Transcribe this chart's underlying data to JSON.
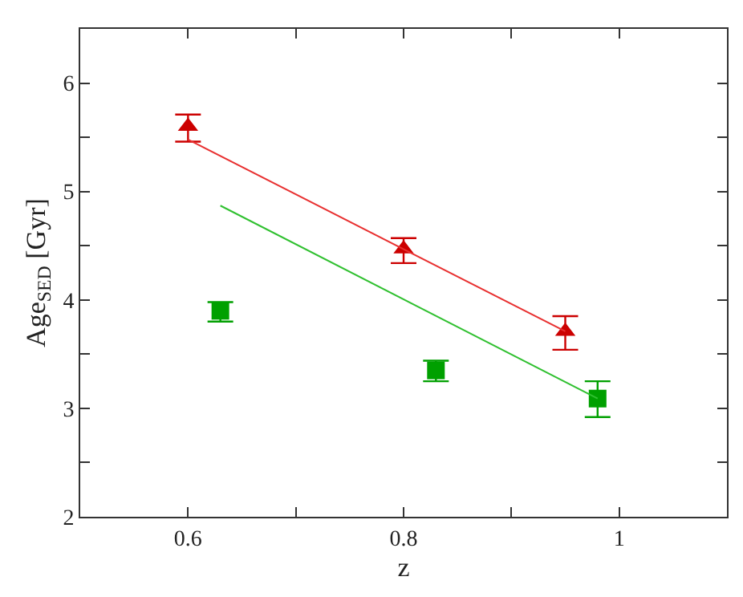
{
  "chart_data": {
    "type": "scatter",
    "xlabel": "z",
    "ylabel": "Age$_{SED}$ [Gyr]",
    "xlim": [
      0.5,
      1.1
    ],
    "ylim": [
      2,
      6.5
    ],
    "xticks": [
      {
        "value": 0.5,
        "label": null
      },
      0.6,
      {
        "value": 0.7,
        "label": null
      },
      0.8,
      {
        "value": 0.9,
        "label": null
      },
      1,
      {
        "value": 1.1,
        "label": null
      }
    ],
    "yticks": [
      2,
      {
        "value": 2.5,
        "label": null
      },
      3,
      {
        "value": 3.5,
        "label": null
      },
      4,
      {
        "value": 4.5,
        "label": null
      },
      5,
      {
        "value": 5.5,
        "label": null
      },
      6
    ],
    "grid": false,
    "legend": false,
    "series": [
      {
        "marker": "triangle",
        "color": "#cc0000",
        "x": [
          0.6,
          0.8,
          0.95
        ],
        "values": [
          5.6,
          4.47,
          3.71
        ],
        "errors": [
          [
            5.46,
            5.71
          ],
          [
            4.34,
            4.57
          ],
          [
            3.54,
            3.85
          ]
        ]
      },
      {
        "marker": "square",
        "color": "#00a000",
        "x": [
          0.63,
          0.83,
          0.98
        ],
        "values": [
          3.9,
          3.35,
          3.09
        ],
        "errors": [
          [
            3.8,
            3.98
          ],
          [
            3.25,
            3.44
          ],
          [
            2.92,
            3.25
          ]
        ]
      },
      {
        "type": "line",
        "marker": "none",
        "color": "#e83030",
        "x": [
          0.95,
          0.6
        ],
        "values": [
          3.71,
          5.48
        ]
      },
      {
        "type": "line",
        "marker": "none",
        "color": "#30c030",
        "x": [
          0.98,
          0.63
        ],
        "values": [
          3.09,
          4.87
        ]
      }
    ]
  }
}
